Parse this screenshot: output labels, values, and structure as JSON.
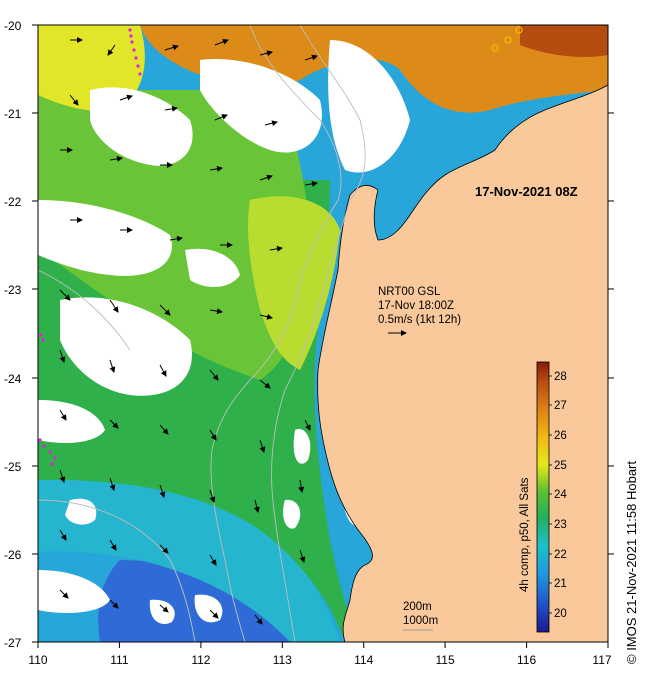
{
  "map": {
    "datestamp": "17-Nov-2021 08Z",
    "current_product": "NRT00 GSL",
    "current_time": "17-Nov 18:00Z",
    "current_scale": "0.5m/s (1kt 12h)",
    "isobath_shallow": "200m",
    "isobath_deep": "1000m",
    "colorbar_title": "4h comp, p50, All Sats",
    "credit": "© IMOS 21-Nov-2021 11:58 Hobart",
    "lon_ticks": [
      "110",
      "111",
      "112",
      "113",
      "114",
      "115",
      "116",
      "117"
    ],
    "lat_ticks": [
      "-20",
      "-21",
      "-22",
      "-23",
      "-24",
      "-25",
      "-26",
      "-27"
    ],
    "colorbar_ticks": [
      "20",
      "21",
      "22",
      "23",
      "24",
      "25",
      "26",
      "27",
      "28"
    ],
    "colors": {
      "land": "#f9c99b",
      "cloud": "#ffffff",
      "sst_warm": "#d97812",
      "sst_mid": "#3cb83a",
      "sst_cool": "#24a3d8"
    }
  }
}
